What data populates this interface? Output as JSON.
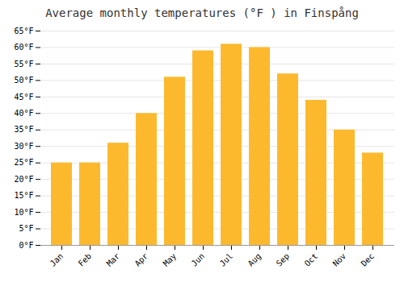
{
  "chart_data": {
    "type": "bar",
    "title": "Average monthly temperatures (°F ) in Finspång",
    "categories": [
      "Jan",
      "Feb",
      "Mar",
      "Apr",
      "May",
      "Jun",
      "Jul",
      "Aug",
      "Sep",
      "Oct",
      "Nov",
      "Dec"
    ],
    "values": [
      25,
      25,
      31,
      40,
      51,
      59,
      61,
      60,
      52,
      44,
      35,
      28
    ],
    "color": "#FDB92E",
    "ylim": [
      0,
      65
    ],
    "yticks": [
      {
        "value": 0,
        "label": "0°F"
      },
      {
        "value": 5,
        "label": "5°F"
      },
      {
        "value": 10,
        "label": "10°F"
      },
      {
        "value": 15,
        "label": "15°F"
      },
      {
        "value": 20,
        "label": "20°F"
      },
      {
        "value": 25,
        "label": "25°F"
      },
      {
        "value": 30,
        "label": "30°F"
      },
      {
        "value": 35,
        "label": "35°F"
      },
      {
        "value": 40,
        "label": "40°F"
      },
      {
        "value": 45,
        "label": "45°F"
      },
      {
        "value": 50,
        "label": "50°F"
      },
      {
        "value": 55,
        "label": "55°F"
      },
      {
        "value": 60,
        "label": "60°F"
      },
      {
        "value": 65,
        "label": "65°F"
      }
    ],
    "grid": true
  }
}
